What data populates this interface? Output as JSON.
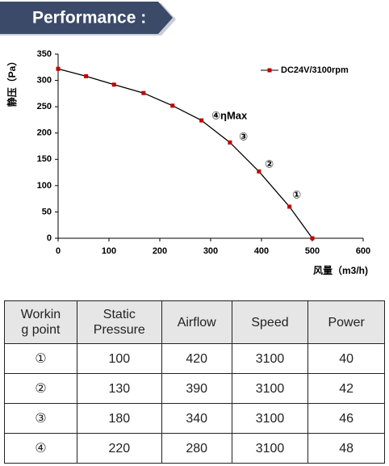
{
  "header": {
    "title": "Performance :"
  },
  "chart_data": {
    "type": "line",
    "x_label": "风量（m3/h)",
    "y_label": "静压（Pa）",
    "x": [
      0,
      55,
      110,
      168,
      225,
      282,
      338,
      395,
      455,
      500
    ],
    "series": [
      {
        "name": "DC24V/3100rpm",
        "color": "#c00000",
        "line_color": "#000000",
        "values": [
          322,
          308,
          292,
          276,
          252,
          224,
          182,
          127,
          60,
          0
        ]
      }
    ],
    "xlim": [
      0,
      600
    ],
    "xticks": [
      0,
      100,
      200,
      300,
      400,
      500,
      600
    ],
    "ylim": [
      0,
      350
    ],
    "yticks": [
      0,
      50,
      100,
      150,
      200,
      250,
      300,
      350
    ],
    "annotations": [
      "④ηMax",
      "③",
      "②",
      "①"
    ],
    "legend": "upper right",
    "grid": false
  },
  "table": {
    "header": [
      "Workin\ng point",
      "Static\nPressure",
      "Airflow",
      "Speed",
      "Power"
    ],
    "rows": [
      [
        "①",
        "100",
        "420",
        "3100",
        "40"
      ],
      [
        "②",
        "130",
        "390",
        "3100",
        "42"
      ],
      [
        "③",
        "180",
        "340",
        "3100",
        "46"
      ],
      [
        "④",
        "220",
        "280",
        "3100",
        "48"
      ]
    ]
  }
}
